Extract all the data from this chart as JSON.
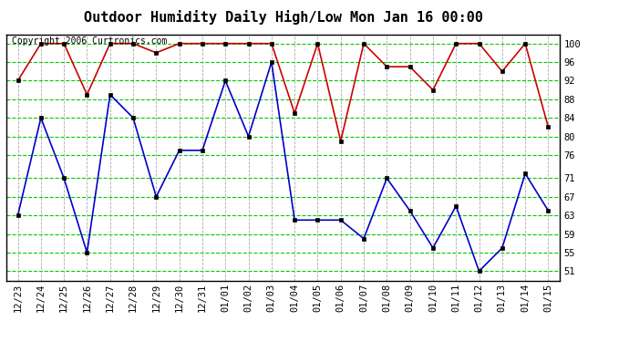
{
  "title": "Outdoor Humidity Daily High/Low Mon Jan 16 00:00",
  "copyright": "Copyright 2006 Curtronics.com",
  "x_labels": [
    "12/23",
    "12/24",
    "12/25",
    "12/26",
    "12/27",
    "12/28",
    "12/29",
    "12/30",
    "12/31",
    "01/01",
    "01/02",
    "01/03",
    "01/04",
    "01/05",
    "01/06",
    "01/07",
    "01/08",
    "01/09",
    "01/10",
    "01/11",
    "01/12",
    "01/13",
    "01/14",
    "01/15"
  ],
  "high_values": [
    92,
    100,
    100,
    89,
    100,
    100,
    98,
    100,
    100,
    100,
    100,
    100,
    85,
    100,
    79,
    100,
    95,
    95,
    90,
    100,
    100,
    94,
    100,
    82
  ],
  "low_values": [
    63,
    84,
    71,
    55,
    89,
    84,
    67,
    77,
    77,
    92,
    80,
    96,
    62,
    62,
    62,
    58,
    71,
    64,
    56,
    65,
    51,
    56,
    72,
    64
  ],
  "ylim_min": 49,
  "ylim_max": 102,
  "yticks": [
    51,
    55,
    59,
    63,
    67,
    71,
    76,
    80,
    84,
    88,
    92,
    96,
    100
  ],
  "high_color": "#cc0000",
  "low_color": "#0000cc",
  "marker_color": "#000000",
  "bg_color": "#ffffff",
  "plot_bg_color": "#ffffff",
  "grid_color": "#00cc00",
  "vgrid_color": "#aaaaaa",
  "border_color": "#000000",
  "title_fontsize": 11,
  "copyright_fontsize": 7,
  "tick_fontsize": 7.5
}
